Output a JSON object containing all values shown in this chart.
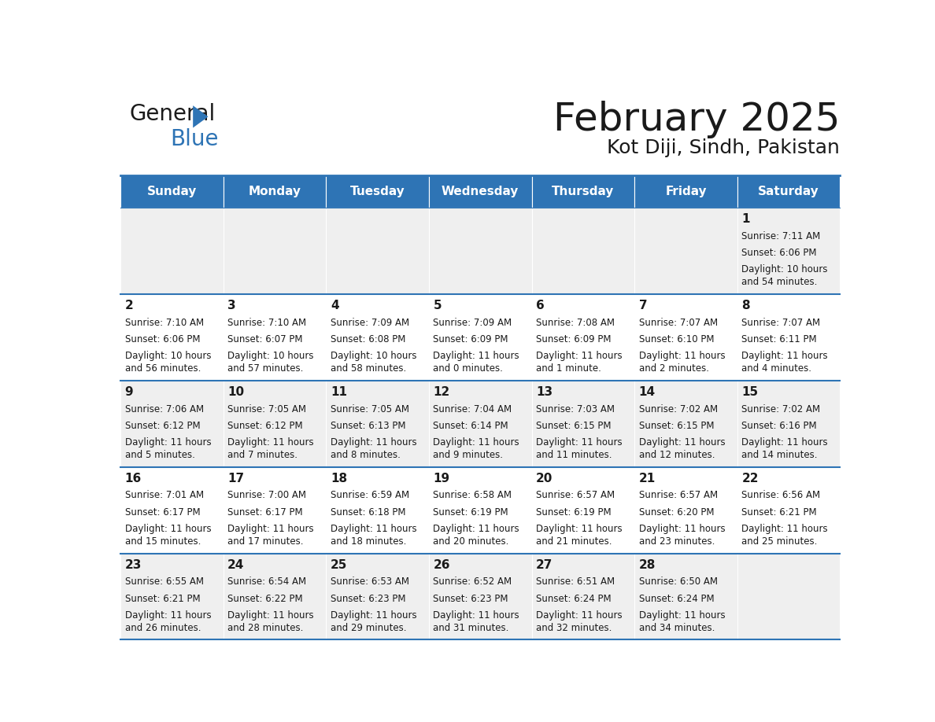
{
  "title": "February 2025",
  "subtitle": "Kot Diji, Sindh, Pakistan",
  "header_bg": "#2E74B5",
  "header_text_color": "#FFFFFF",
  "cell_bg_odd": "#EFEFEF",
  "cell_bg_even": "#FFFFFF",
  "day_headers": [
    "Sunday",
    "Monday",
    "Tuesday",
    "Wednesday",
    "Thursday",
    "Friday",
    "Saturday"
  ],
  "logo_color1": "#1a1a1a",
  "logo_color2": "#2E74B5",
  "line_color": "#2E74B5",
  "calendar_data": [
    [
      {
        "day": "",
        "sunrise": "",
        "sunset": "",
        "daylight": ""
      },
      {
        "day": "",
        "sunrise": "",
        "sunset": "",
        "daylight": ""
      },
      {
        "day": "",
        "sunrise": "",
        "sunset": "",
        "daylight": ""
      },
      {
        "day": "",
        "sunrise": "",
        "sunset": "",
        "daylight": ""
      },
      {
        "day": "",
        "sunrise": "",
        "sunset": "",
        "daylight": ""
      },
      {
        "day": "",
        "sunrise": "",
        "sunset": "",
        "daylight": ""
      },
      {
        "day": "1",
        "sunrise": "7:11 AM",
        "sunset": "6:06 PM",
        "daylight": "10 hours\nand 54 minutes."
      }
    ],
    [
      {
        "day": "2",
        "sunrise": "7:10 AM",
        "sunset": "6:06 PM",
        "daylight": "10 hours\nand 56 minutes."
      },
      {
        "day": "3",
        "sunrise": "7:10 AM",
        "sunset": "6:07 PM",
        "daylight": "10 hours\nand 57 minutes."
      },
      {
        "day": "4",
        "sunrise": "7:09 AM",
        "sunset": "6:08 PM",
        "daylight": "10 hours\nand 58 minutes."
      },
      {
        "day": "5",
        "sunrise": "7:09 AM",
        "sunset": "6:09 PM",
        "daylight": "11 hours\nand 0 minutes."
      },
      {
        "day": "6",
        "sunrise": "7:08 AM",
        "sunset": "6:09 PM",
        "daylight": "11 hours\nand 1 minute."
      },
      {
        "day": "7",
        "sunrise": "7:07 AM",
        "sunset": "6:10 PM",
        "daylight": "11 hours\nand 2 minutes."
      },
      {
        "day": "8",
        "sunrise": "7:07 AM",
        "sunset": "6:11 PM",
        "daylight": "11 hours\nand 4 minutes."
      }
    ],
    [
      {
        "day": "9",
        "sunrise": "7:06 AM",
        "sunset": "6:12 PM",
        "daylight": "11 hours\nand 5 minutes."
      },
      {
        "day": "10",
        "sunrise": "7:05 AM",
        "sunset": "6:12 PM",
        "daylight": "11 hours\nand 7 minutes."
      },
      {
        "day": "11",
        "sunrise": "7:05 AM",
        "sunset": "6:13 PM",
        "daylight": "11 hours\nand 8 minutes."
      },
      {
        "day": "12",
        "sunrise": "7:04 AM",
        "sunset": "6:14 PM",
        "daylight": "11 hours\nand 9 minutes."
      },
      {
        "day": "13",
        "sunrise": "7:03 AM",
        "sunset": "6:15 PM",
        "daylight": "11 hours\nand 11 minutes."
      },
      {
        "day": "14",
        "sunrise": "7:02 AM",
        "sunset": "6:15 PM",
        "daylight": "11 hours\nand 12 minutes."
      },
      {
        "day": "15",
        "sunrise": "7:02 AM",
        "sunset": "6:16 PM",
        "daylight": "11 hours\nand 14 minutes."
      }
    ],
    [
      {
        "day": "16",
        "sunrise": "7:01 AM",
        "sunset": "6:17 PM",
        "daylight": "11 hours\nand 15 minutes."
      },
      {
        "day": "17",
        "sunrise": "7:00 AM",
        "sunset": "6:17 PM",
        "daylight": "11 hours\nand 17 minutes."
      },
      {
        "day": "18",
        "sunrise": "6:59 AM",
        "sunset": "6:18 PM",
        "daylight": "11 hours\nand 18 minutes."
      },
      {
        "day": "19",
        "sunrise": "6:58 AM",
        "sunset": "6:19 PM",
        "daylight": "11 hours\nand 20 minutes."
      },
      {
        "day": "20",
        "sunrise": "6:57 AM",
        "sunset": "6:19 PM",
        "daylight": "11 hours\nand 21 minutes."
      },
      {
        "day": "21",
        "sunrise": "6:57 AM",
        "sunset": "6:20 PM",
        "daylight": "11 hours\nand 23 minutes."
      },
      {
        "day": "22",
        "sunrise": "6:56 AM",
        "sunset": "6:21 PM",
        "daylight": "11 hours\nand 25 minutes."
      }
    ],
    [
      {
        "day": "23",
        "sunrise": "6:55 AM",
        "sunset": "6:21 PM",
        "daylight": "11 hours\nand 26 minutes."
      },
      {
        "day": "24",
        "sunrise": "6:54 AM",
        "sunset": "6:22 PM",
        "daylight": "11 hours\nand 28 minutes."
      },
      {
        "day": "25",
        "sunrise": "6:53 AM",
        "sunset": "6:23 PM",
        "daylight": "11 hours\nand 29 minutes."
      },
      {
        "day": "26",
        "sunrise": "6:52 AM",
        "sunset": "6:23 PM",
        "daylight": "11 hours\nand 31 minutes."
      },
      {
        "day": "27",
        "sunrise": "6:51 AM",
        "sunset": "6:24 PM",
        "daylight": "11 hours\nand 32 minutes."
      },
      {
        "day": "28",
        "sunrise": "6:50 AM",
        "sunset": "6:24 PM",
        "daylight": "11 hours\nand 34 minutes."
      },
      {
        "day": "",
        "sunrise": "",
        "sunset": "",
        "daylight": ""
      }
    ]
  ]
}
